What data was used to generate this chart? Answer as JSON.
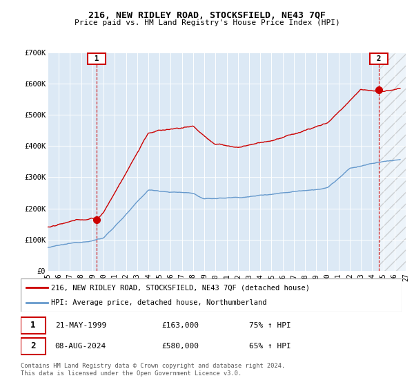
{
  "title": "216, NEW RIDLEY ROAD, STOCKSFIELD, NE43 7QF",
  "subtitle": "Price paid vs. HM Land Registry's House Price Index (HPI)",
  "ylim": [
    0,
    700000
  ],
  "yticks": [
    0,
    100000,
    200000,
    300000,
    400000,
    500000,
    600000,
    700000
  ],
  "ytick_labels": [
    "£0",
    "£100K",
    "£200K",
    "£300K",
    "£400K",
    "£500K",
    "£600K",
    "£700K"
  ],
  "xlim": [
    1995,
    2027
  ],
  "legend_line1": "216, NEW RIDLEY ROAD, STOCKSFIELD, NE43 7QF (detached house)",
  "legend_line2": "HPI: Average price, detached house, Northumberland",
  "sale1_date": "21-MAY-1999",
  "sale1_price": "£163,000",
  "sale1_pct": "75% ↑ HPI",
  "sale2_date": "08-AUG-2024",
  "sale2_price": "£580,000",
  "sale2_pct": "65% ↑ HPI",
  "footer": "Contains HM Land Registry data © Crown copyright and database right 2024.\nThis data is licensed under the Open Government Licence v3.0.",
  "line_color_red": "#cc0000",
  "line_color_blue": "#6699cc",
  "bg_plot": "#dce9f5",
  "bg_outer": "#ffffff",
  "grid_color": "#ffffff",
  "sale1_year": 1999.4,
  "sale1_value": 163000,
  "sale2_year": 2024.6,
  "sale2_value": 580000
}
